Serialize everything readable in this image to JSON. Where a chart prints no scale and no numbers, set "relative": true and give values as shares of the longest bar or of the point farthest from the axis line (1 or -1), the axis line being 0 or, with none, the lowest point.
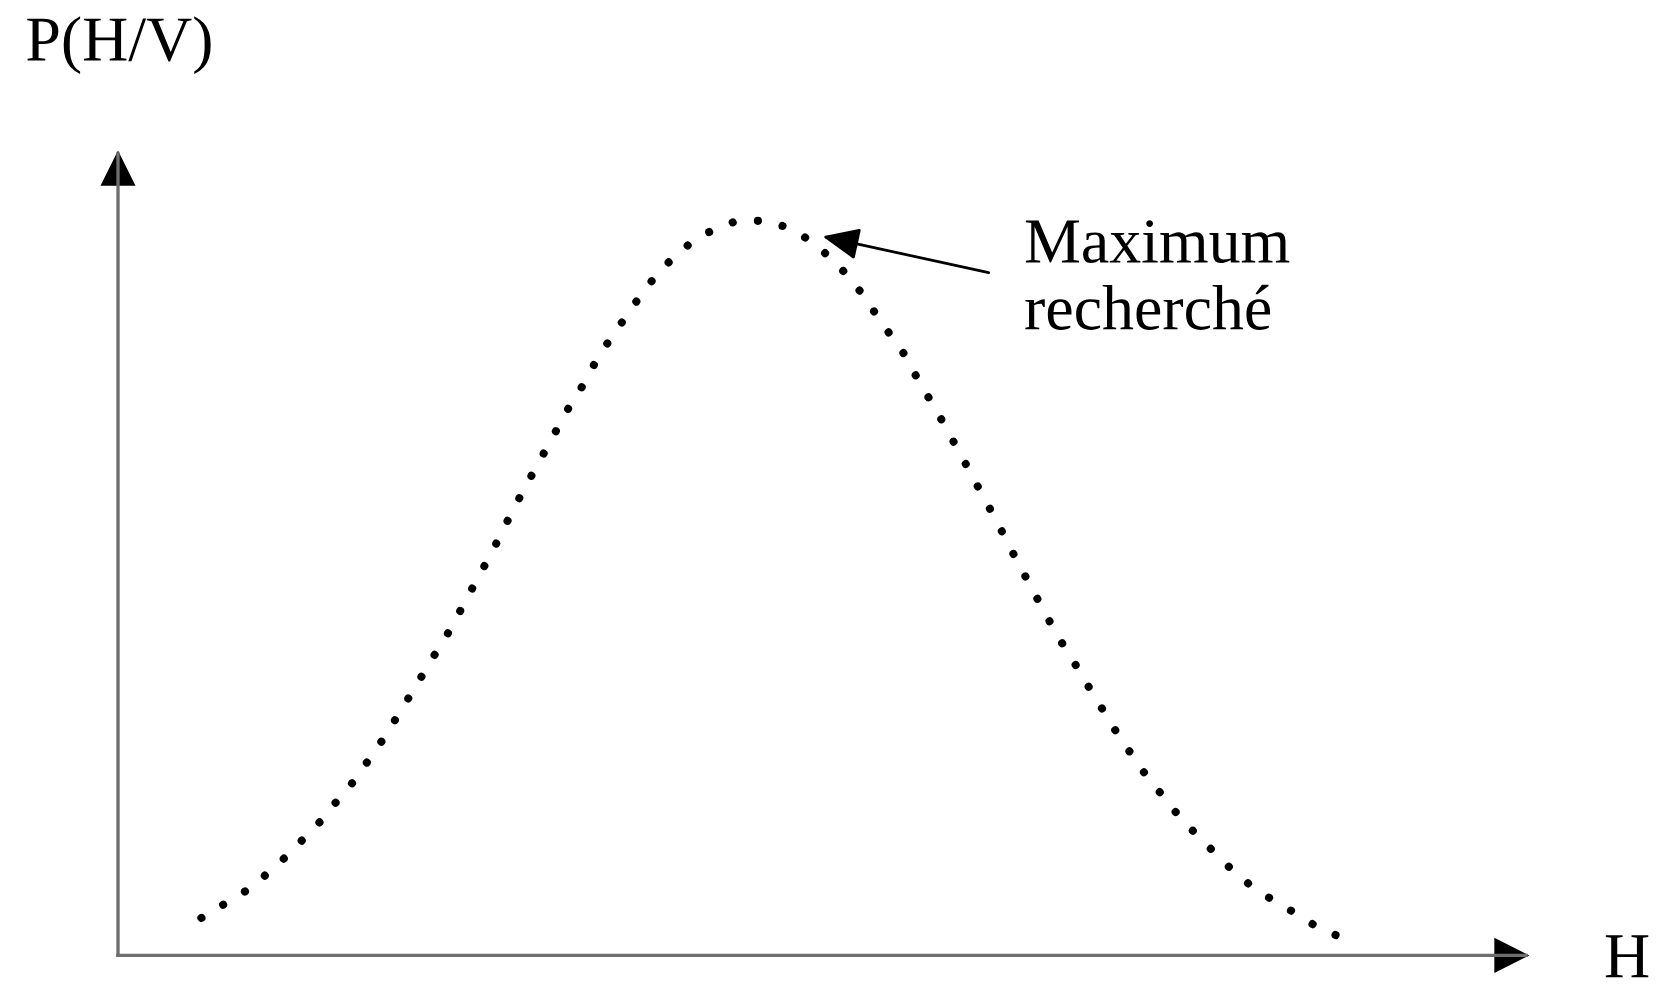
{
  "chart_data": {
    "type": "line",
    "relative": true,
    "line_style": "dotted",
    "color": "#000000",
    "xlabel": "H",
    "ylabel": "P(H/V)",
    "categories": [
      null,
      null,
      null,
      null,
      null,
      null,
      null,
      null,
      null,
      null,
      null,
      null,
      null,
      null,
      null,
      null,
      null,
      null,
      null,
      null,
      null,
      null,
      null,
      null,
      null,
      null,
      null,
      null,
      null,
      null,
      null,
      null,
      null,
      null,
      null,
      null,
      null,
      null,
      null,
      null,
      null,
      null,
      null,
      null,
      null,
      null,
      null,
      null,
      null,
      null,
      null,
      null,
      null,
      null,
      null,
      null,
      null,
      null,
      null,
      null,
      null,
      null,
      null,
      null,
      null,
      null,
      null,
      null,
      null,
      null,
      null,
      null,
      null,
      null,
      null,
      null
    ],
    "values": [
      0.051,
      0.064,
      0.076,
      0.089,
      0.106,
      0.124,
      0.144,
      0.166,
      0.187,
      0.214,
      0.238,
      0.268,
      0.298,
      0.332,
      0.366,
      0.401,
      0.434,
      0.472,
      0.511,
      0.549,
      0.591,
      0.631,
      0.669,
      0.707,
      0.745,
      0.778,
      0.817,
      0.847,
      0.877,
      0.907,
      0.932,
      0.953,
      0.97,
      0.983,
      0.992,
      1.0,
      1.0,
      1.0,
      0.993,
      0.984,
      0.97,
      0.952,
      0.931,
      0.906,
      0.876,
      0.846,
      0.817,
      0.778,
      0.744,
      0.706,
      0.668,
      0.629,
      0.591,
      0.55,
      0.511,
      0.472,
      0.434,
      0.401,
      0.366,
      0.332,
      0.298,
      0.268,
      0.238,
      0.214,
      0.187,
      0.166,
      0.145,
      0.124,
      0.105,
      0.089,
      0.076,
      0.064,
      0.051,
      0.038,
      0.029,
      0.021
    ],
    "annotations": [
      "Maximum\nrecherché"
    ]
  }
}
